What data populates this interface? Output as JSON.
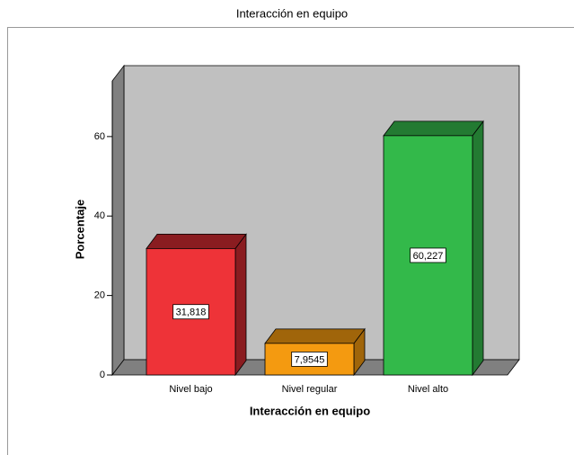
{
  "chart_data": {
    "type": "bar3d",
    "title": "Interacción en equipo",
    "xlabel": "Interacción en equipo",
    "ylabel": "Porcentaje",
    "categories": [
      "Nivel bajo",
      "Nivel regular",
      "Nivel alto"
    ],
    "values": [
      31.818,
      7.9545,
      60.227
    ],
    "value_labels": [
      "31,818",
      "7,9545",
      "60,227"
    ],
    "colors": [
      "#ee3338",
      "#f49a10",
      "#33b94a"
    ],
    "side_colors": [
      "#8a1c20",
      "#a0650a",
      "#237a32"
    ],
    "ylim": [
      0,
      74
    ],
    "yticks": [
      0,
      20,
      40,
      60
    ]
  }
}
